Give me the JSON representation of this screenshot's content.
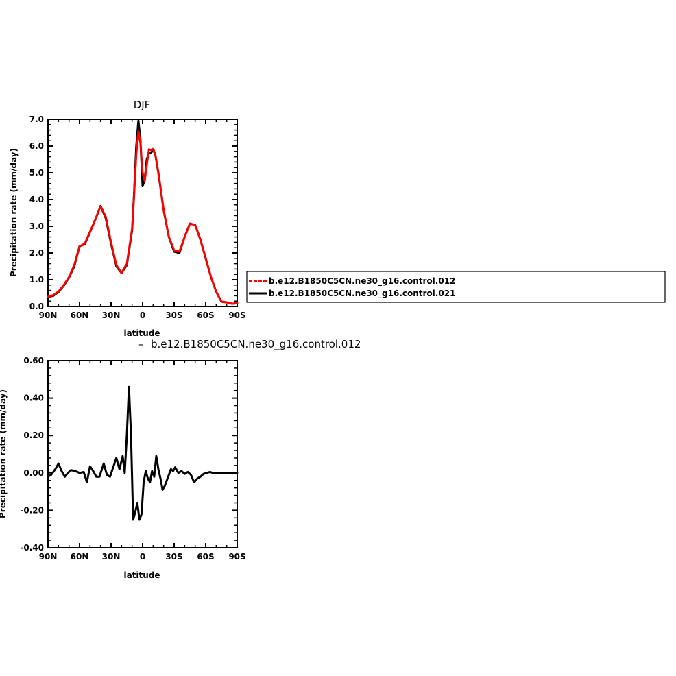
{
  "chart_data": [
    {
      "type": "line",
      "title": "DJF",
      "xlabel": "latitude",
      "ylabel": "Precipitation rate (mm/day)",
      "xlim": [
        90,
        -90
      ],
      "ylim": [
        0,
        7
      ],
      "x_ticks": [
        "90N",
        "60N",
        "30N",
        "0",
        "30S",
        "60S",
        "90S"
      ],
      "y_ticks": [
        "0.0",
        "1.0",
        "2.0",
        "3.0",
        "4.0",
        "5.0",
        "6.0",
        "7.0"
      ],
      "legend_position": "right",
      "x": [
        90,
        85,
        80,
        75,
        70,
        65,
        60,
        55,
        50,
        45,
        40,
        35,
        30,
        25,
        20,
        15,
        10,
        8,
        6,
        4,
        2,
        0,
        -2,
        -4,
        -6,
        -8,
        -10,
        -12,
        -15,
        -20,
        -25,
        -30,
        -35,
        -40,
        -45,
        -50,
        -55,
        -60,
        -65,
        -70,
        -75,
        -80,
        -85,
        -90
      ],
      "series": [
        {
          "name": "b.e12.B1850C5CN.ne30_g16.control.012",
          "color": "#ff0000",
          "dashed": true,
          "values": [
            0.37,
            0.42,
            0.56,
            0.8,
            1.1,
            1.55,
            2.25,
            2.35,
            2.8,
            3.25,
            3.76,
            3.35,
            2.4,
            1.55,
            1.25,
            1.6,
            2.9,
            4.2,
            5.7,
            6.55,
            6.1,
            5.0,
            4.7,
            5.3,
            5.88,
            5.85,
            5.9,
            5.7,
            5.0,
            3.6,
            2.6,
            2.1,
            2.05,
            2.6,
            3.1,
            3.05,
            2.5,
            1.8,
            1.1,
            0.55,
            0.18,
            0.15,
            0.1,
            0.12
          ]
        },
        {
          "name": "b.e12.B1850C5CN.ne30_g16.control.021",
          "color": "#000000",
          "dashed": false,
          "values": [
            0.36,
            0.4,
            0.54,
            0.78,
            1.08,
            1.5,
            2.25,
            2.33,
            2.78,
            3.25,
            3.76,
            3.3,
            2.35,
            1.5,
            1.25,
            1.55,
            2.85,
            4.3,
            6.0,
            6.95,
            6.2,
            4.5,
            4.75,
            5.5,
            5.75,
            5.75,
            5.85,
            5.7,
            5.0,
            3.6,
            2.6,
            2.05,
            2.0,
            2.6,
            3.1,
            3.05,
            2.5,
            1.8,
            1.1,
            0.55,
            0.18,
            0.15,
            0.1,
            0.12
          ]
        }
      ]
    },
    {
      "type": "line",
      "title": "b.e12.B1850C5CN.ne30_g16.control.012",
      "title_prefix": "–",
      "xlabel": "latitude",
      "ylabel": "Precipitation rate (mm/day)",
      "xlim": [
        90,
        -90
      ],
      "ylim": [
        -0.4,
        0.6
      ],
      "x_ticks": [
        "90N",
        "60N",
        "30N",
        "0",
        "30S",
        "60S",
        "90S"
      ],
      "y_ticks": [
        "-0.40",
        "-0.20",
        "0.00",
        "0.20",
        "0.40",
        "0.60"
      ],
      "x": [
        90,
        87,
        83,
        80,
        77,
        74,
        71,
        68,
        64,
        60,
        56,
        53,
        50,
        47,
        44,
        41,
        37,
        34,
        31,
        28,
        25,
        22,
        19,
        17,
        15,
        13,
        11,
        9,
        7,
        5,
        3,
        1,
        -1,
        -3,
        -5,
        -7,
        -9,
        -11,
        -13,
        -15,
        -17,
        -19,
        -21,
        -23,
        -25,
        -27,
        -29,
        -31,
        -34,
        -37,
        -40,
        -43,
        -46,
        -49,
        -52,
        -55,
        -58,
        -61,
        -64,
        -67,
        -70,
        -73,
        -76,
        -80,
        -84,
        -87,
        -90
      ],
      "series": [
        {
          "name": "b.e12.B1850C5CN.ne30_g16.control.012",
          "color": "#000000",
          "dashed": false,
          "values": [
            -0.02,
            -0.01,
            0.02,
            0.05,
            0.01,
            -0.02,
            0.0,
            0.015,
            0.01,
            0.0,
            0.005,
            -0.05,
            0.035,
            0.01,
            -0.02,
            -0.02,
            0.05,
            -0.01,
            -0.02,
            0.03,
            0.08,
            0.02,
            0.09,
            0.0,
            0.2,
            0.46,
            0.2,
            -0.25,
            -0.21,
            -0.16,
            -0.25,
            -0.22,
            -0.05,
            0.01,
            -0.03,
            -0.05,
            0.01,
            -0.02,
            0.09,
            0.02,
            -0.03,
            -0.09,
            -0.07,
            -0.04,
            -0.01,
            0.02,
            0.01,
            0.03,
            0.0,
            0.01,
            -0.005,
            0.005,
            -0.01,
            -0.05,
            -0.03,
            -0.02,
            -0.005,
            0.0,
            0.005,
            0.0,
            0.0,
            0.0,
            0.0,
            0.0,
            0.0,
            0.0,
            0.0
          ]
        }
      ]
    }
  ]
}
